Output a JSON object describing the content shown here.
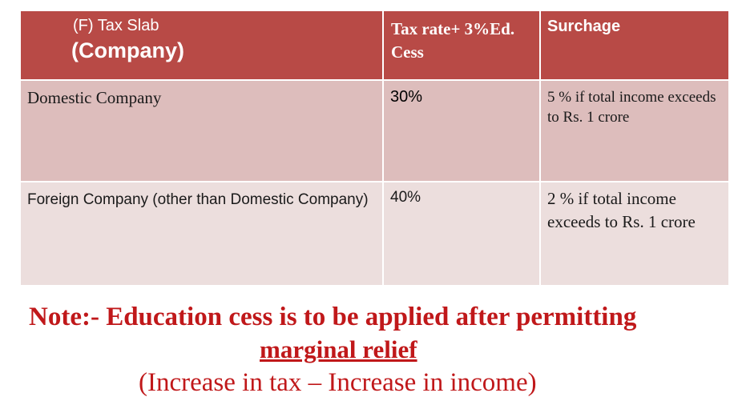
{
  "table": {
    "header": {
      "slab_line1": "(F) Tax Slab",
      "slab_line2": "(Company)",
      "rate_label": "Tax rate+ 3%Ed. Cess",
      "surcharge_label": "Surchage"
    },
    "rows": [
      {
        "name": "Domestic Company",
        "rate": "30%",
        "surcharge": "5 % if total income exceeds to Rs. 1 crore"
      },
      {
        "name": "Foreign Company (other than Domestic Company)",
        "rate": "40%",
        "surcharge": "2 % if total income exceeds to Rs. 1 crore"
      }
    ]
  },
  "note": {
    "line1": "Note:- Education cess is to be applied after permitting",
    "line2": "marginal relief",
    "line3": "(Increase in tax – Increase in income)"
  },
  "colors": {
    "header_bg": "#b84a46",
    "row1_bg": "#ddbdbc",
    "row2_bg": "#ecdedd",
    "note_text": "#c0181a"
  }
}
